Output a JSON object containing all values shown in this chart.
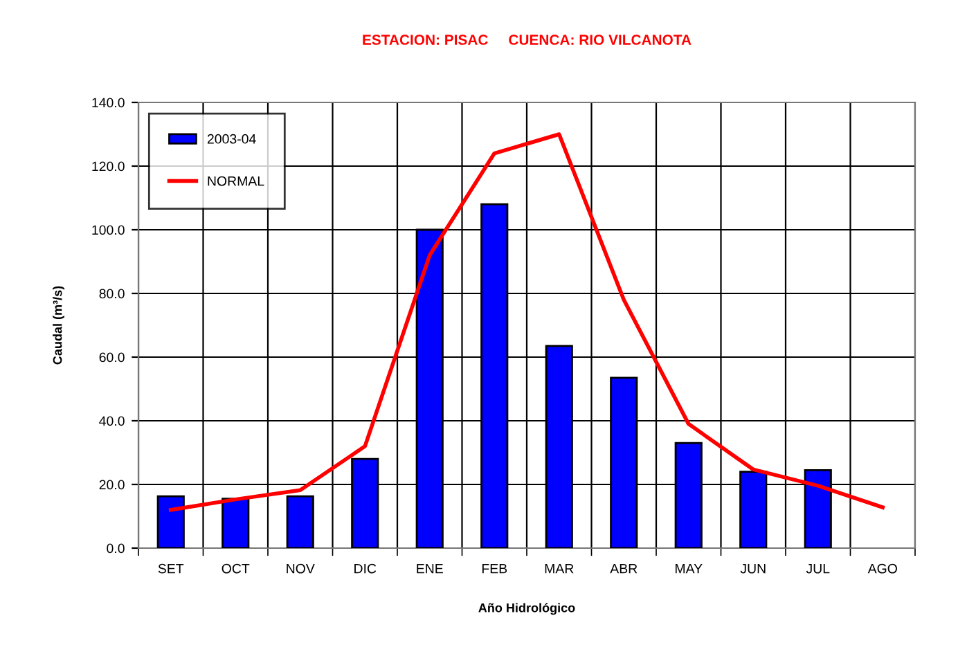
{
  "chart_data": {
    "type": "bar",
    "title": "ESTACION: PISAC     CUENCA: RIO VILCANOTA",
    "xlabel": "Año Hidrológico",
    "ylabel": "Caudal (m³/s)",
    "categories": [
      "SET",
      "OCT",
      "NOV",
      "DIC",
      "ENE",
      "FEB",
      "MAR",
      "ABR",
      "MAY",
      "JUN",
      "JUL",
      "AGO"
    ],
    "series": [
      {
        "name": "2003-04",
        "color": "#0000ff",
        "values": [
          16.3,
          15.5,
          16.3,
          28,
          100,
          108,
          63.5,
          53.5,
          33,
          24,
          24.5,
          null
        ]
      },
      {
        "name": "NORMAL",
        "type": "line",
        "color": "#ff0000",
        "values": [
          12,
          15.3,
          18.2,
          32,
          92,
          124,
          130,
          78,
          39,
          24.7,
          19.6,
          12.8
        ]
      }
    ],
    "ylim": [
      0,
      140
    ],
    "yticks": [
      {
        "value": 0,
        "label": "0.0"
      },
      {
        "value": 20,
        "label": "20.0"
      },
      {
        "value": 40,
        "label": "40.0"
      },
      {
        "value": 60,
        "label": "60.0"
      },
      {
        "value": 80,
        "label": "80.0"
      },
      {
        "value": 100,
        "label": "100.0"
      },
      {
        "value": 120,
        "label": "120.0"
      },
      {
        "value": 140,
        "label": "140.0"
      }
    ],
    "grid": true,
    "legend": "top left",
    "marker": "none",
    "line_style": "solid"
  }
}
